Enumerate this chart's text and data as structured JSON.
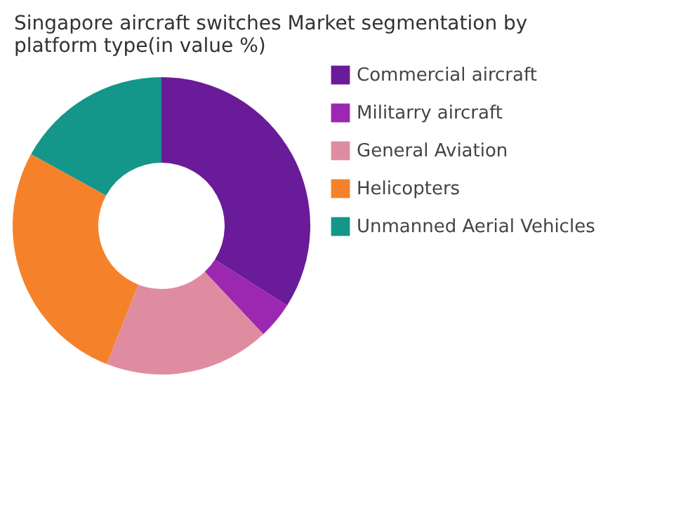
{
  "chart_data": {
    "type": "donut",
    "title": "Singapore aircraft switches Market segmentation by platform type(in value %)",
    "categories": [
      "Commercial aircraft",
      "Militarry aircraft",
      "General Aviation",
      "Helicopters",
      "Unmanned Aerial Vehicles"
    ],
    "values": [
      34,
      4,
      18,
      27,
      17
    ],
    "colors": [
      "#6a1b9a",
      "#9c27b0",
      "#e08ca0",
      "#f5822a",
      "#14968a"
    ],
    "legend": "right"
  }
}
